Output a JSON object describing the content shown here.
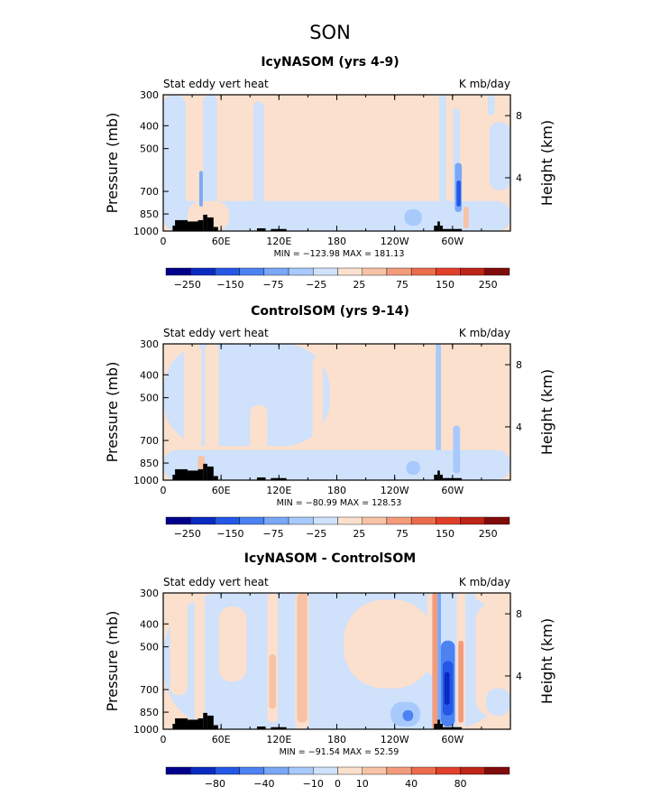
{
  "figure": {
    "title": "SON",
    "colors": [
      "#00008b",
      "#0a2bc0",
      "#2457e6",
      "#4d82f2",
      "#7aa8f7",
      "#a8c9fb",
      "#cfe1fb",
      "#fbe0ce",
      "#f7c3a6",
      "#f39c7c",
      "#ec6d4c",
      "#e0402a",
      "#be2417",
      "#7f0b0a"
    ]
  },
  "chart_data": [
    {
      "type": "heatmap",
      "title": "IcyNASOM (yrs 4-9)",
      "left_label": "Stat eddy vert heat",
      "right_label": "K mb/day",
      "ylabel": "Pressure (mb)",
      "y2label": "Height (km)",
      "x_ticks": [
        "0",
        "60E",
        "120E",
        "180",
        "120W",
        "60W"
      ],
      "xlim": [
        0,
        360
      ],
      "y_ticks": [
        "300",
        "400",
        "500",
        "700",
        "850",
        "1000"
      ],
      "ylim": [
        1000,
        300
      ],
      "y2_ticks": [
        "4",
        "8"
      ],
      "stats": "MIN = −123.98   MAX = 181.13",
      "colorbar_labels": [
        "−250",
        "−150",
        "−75",
        "−25",
        "25",
        "75",
        "150",
        "250"
      ],
      "contour_levels": [
        -300,
        -250,
        -200,
        -150,
        -100,
        -75,
        -50,
        -25,
        0,
        25,
        50,
        75,
        100,
        150,
        200,
        250,
        300
      ],
      "min": -123.98,
      "max": 181.13
    },
    {
      "type": "heatmap",
      "title": "ControlSOM (yrs 9-14)",
      "left_label": "Stat eddy vert heat",
      "right_label": "K mb/day",
      "ylabel": "Pressure (mb)",
      "y2label": "Height (km)",
      "x_ticks": [
        "0",
        "60E",
        "120E",
        "180",
        "120W",
        "60W"
      ],
      "xlim": [
        0,
        360
      ],
      "y_ticks": [
        "300",
        "400",
        "500",
        "700",
        "850",
        "1000"
      ],
      "ylim": [
        1000,
        300
      ],
      "y2_ticks": [
        "4",
        "8"
      ],
      "stats": "MIN = −80.99   MAX = 128.53",
      "colorbar_labels": [
        "−250",
        "−150",
        "−75",
        "−25",
        "25",
        "75",
        "150",
        "250"
      ],
      "min": -80.99,
      "max": 128.53
    },
    {
      "type": "heatmap",
      "title": "IcyNASOM - ControlSOM",
      "left_label": "Stat eddy vert heat",
      "right_label": "K mb/day",
      "ylabel": "Pressure (mb)",
      "y2label": "Height (km)",
      "x_ticks": [
        "0",
        "60E",
        "120E",
        "180",
        "120W",
        "60W"
      ],
      "xlim": [
        0,
        360
      ],
      "y_ticks": [
        "300",
        "400",
        "500",
        "700",
        "850",
        "1000"
      ],
      "ylim": [
        1000,
        300
      ],
      "y2_ticks": [
        "4",
        "8"
      ],
      "stats": "MIN = −91.54   MAX = 52.59",
      "colorbar_labels": [
        "−80",
        "−40",
        "−10",
        "0",
        "10",
        "40",
        "80"
      ],
      "min": -91.54,
      "max": 52.59
    }
  ]
}
